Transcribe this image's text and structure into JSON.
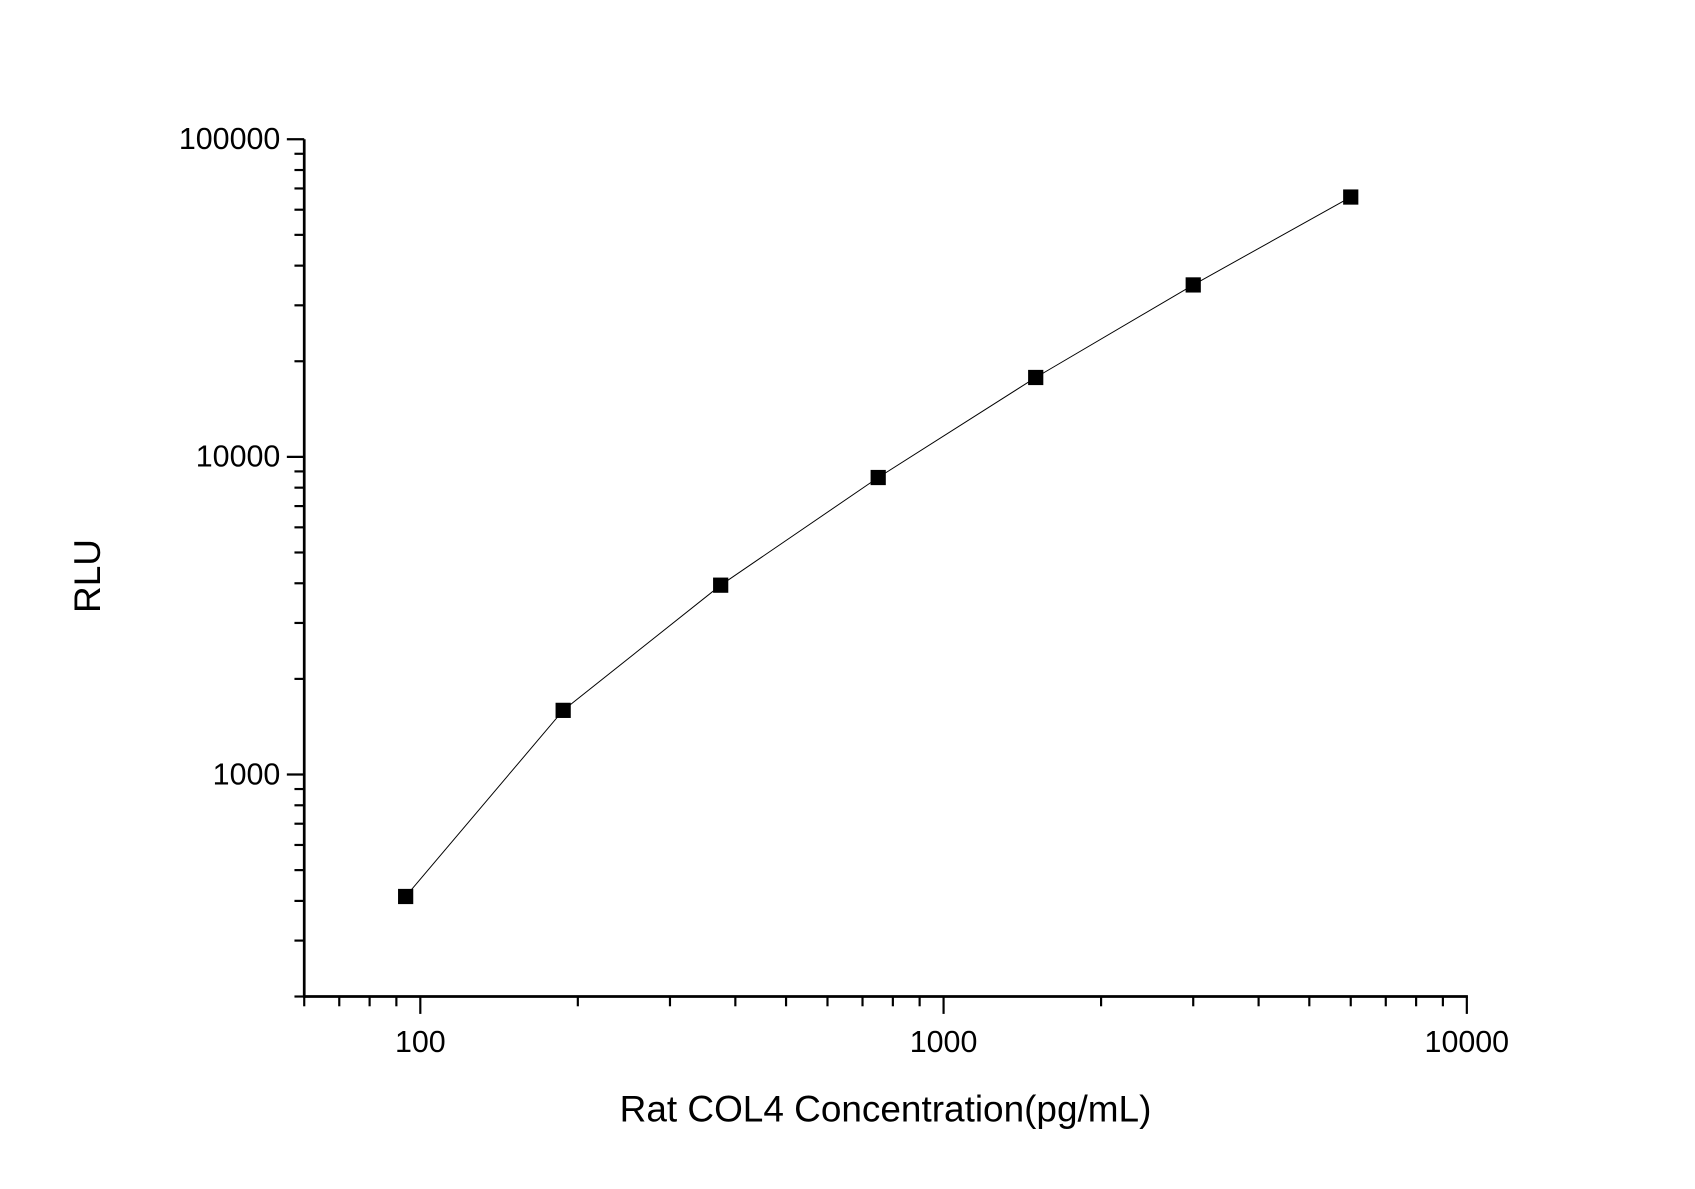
{
  "chart_data": {
    "type": "line",
    "title": "",
    "xlabel": "Rat COL4 Concentration(pg/mL)",
    "ylabel": "RLU",
    "x_scale": "log",
    "y_scale": "log",
    "xlim": [
      60,
      10000
    ],
    "ylim": [
      200,
      100000
    ],
    "x_ticks": [
      {
        "value": 100,
        "label": "100"
      },
      {
        "value": 1000,
        "label": "1000"
      },
      {
        "value": 10000,
        "label": "10000"
      }
    ],
    "y_ticks": [
      {
        "value": 1000,
        "label": "1000"
      },
      {
        "value": 10000,
        "label": "10000"
      },
      {
        "value": 100000,
        "label": "100000"
      }
    ],
    "grid": false,
    "marker": "square",
    "color": "#000000",
    "series": [
      {
        "x": [
          93.75,
          187.5,
          375,
          750,
          1500,
          3000,
          6000
        ],
        "y": [
          413,
          1592,
          3945,
          8610,
          17780,
          34780,
          65770
        ]
      }
    ]
  }
}
